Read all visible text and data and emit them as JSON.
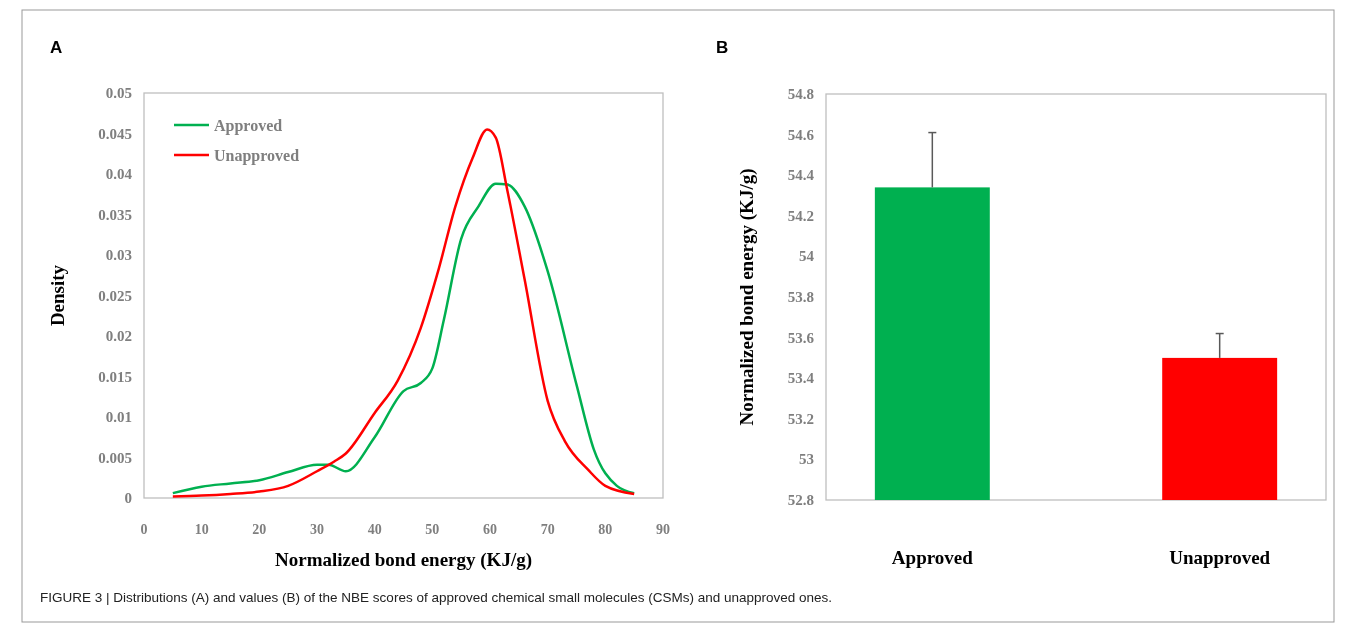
{
  "chart_data": [
    {
      "type": "line",
      "title": "A",
      "xlabel": "Normalized bond energy (KJ/g)",
      "ylabel": "Density",
      "xlim": [
        0,
        90
      ],
      "xticks": [
        0,
        10,
        20,
        30,
        40,
        50,
        60,
        70,
        80,
        90
      ],
      "ylim": [
        0,
        0.05
      ],
      "yticks": [
        0,
        0.005,
        0.01,
        0.015,
        0.02,
        0.025,
        0.03,
        0.035,
        0.04,
        0.045,
        0.05
      ],
      "legend": "top left",
      "grid": false,
      "series": [
        {
          "name": "Approved",
          "color": "#00b050",
          "x": [
            5,
            10,
            15,
            20,
            25,
            30,
            32,
            35,
            40,
            45,
            48,
            50,
            52,
            55,
            58,
            61,
            63,
            66,
            70,
            75,
            78,
            82,
            85
          ],
          "values": [
            0.0006,
            0.0014,
            0.0018,
            0.0022,
            0.0032,
            0.0041,
            0.0041,
            0.0033,
            0.0075,
            0.0132,
            0.0142,
            0.016,
            0.022,
            0.032,
            0.036,
            0.0388,
            0.0387,
            0.036,
            0.028,
            0.014,
            0.006,
            0.0015,
            0.0006
          ]
        },
        {
          "name": "Unapproved",
          "color": "#ff0000",
          "x": [
            5,
            10,
            15,
            20,
            25,
            30,
            33,
            35,
            40,
            44,
            48,
            51,
            54,
            57,
            59.5,
            61,
            63,
            66,
            70,
            73,
            77,
            80,
            85
          ],
          "values": [
            0.0002,
            0.0003,
            0.0005,
            0.0008,
            0.0015,
            0.0033,
            0.0045,
            0.0055,
            0.0105,
            0.0145,
            0.021,
            0.028,
            0.036,
            0.042,
            0.0455,
            0.0445,
            0.038,
            0.027,
            0.012,
            0.007,
            0.0035,
            0.0015,
            0.0005
          ]
        }
      ],
      "annotations": [
        "FIGURE 3 | Distributions (A) and values (B) of the NBE scores of approved chemical small molecules (CSMs) and unapproved ones."
      ]
    },
    {
      "type": "bar",
      "title": "B",
      "ylabel": "Normalized bond energy (KJ/g)",
      "categories": [
        "Approved",
        "Unapproved"
      ],
      "values": [
        54.34,
        53.5
      ],
      "colors": [
        "#00b050",
        "#ff0000"
      ],
      "errors": [
        [
          54.34,
          54.61
        ],
        [
          53.5,
          53.62
        ]
      ],
      "ylim": [
        52.8,
        54.8
      ],
      "yticks": [
        52.8,
        53,
        53.2,
        53.4,
        53.6,
        53.8,
        54,
        54.2,
        54.4,
        54.6,
        54.8
      ],
      "grid": false,
      "legend": false
    }
  ]
}
